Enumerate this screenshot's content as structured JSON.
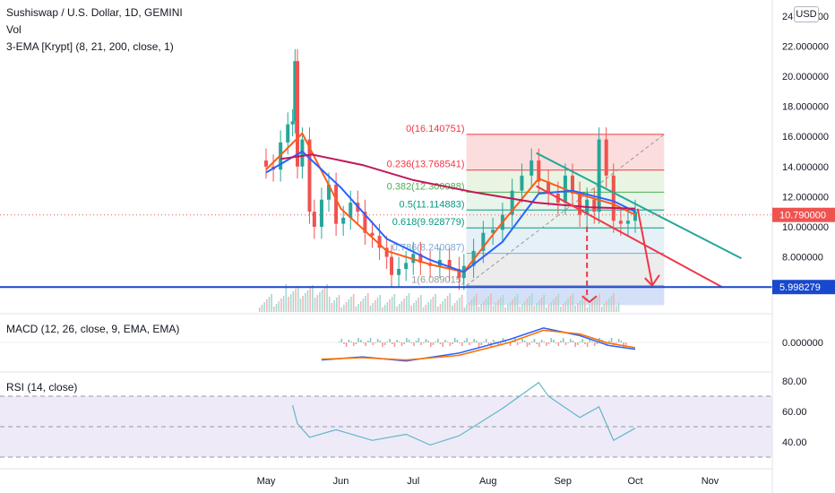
{
  "header": {
    "symbol_title": "Sushiswap / U.S. Dollar, 1D, GEMINI",
    "vol_label": "Vol",
    "ema_label": "3-EMA [Krypt] (8, 21, 200, close, 1)",
    "macd_label": "MACD (12, 26, close, 9, EMA, EMA)",
    "rsi_label": "RSI (14, close)",
    "currency_button": "USD"
  },
  "colors": {
    "up": "#26a69a",
    "down": "#ef5350",
    "ema_fast": "#ff5b1a",
    "ema_mid": "#2962ff",
    "ema_slow": "#c2185b",
    "support": "#1848cc",
    "channel_top": "#26a69a",
    "channel_bottom": "#f23645",
    "rsi": "#5fb8c9",
    "rsi_band": "#efeaf8",
    "macd": "#2962ff",
    "signal": "#ff6d00"
  },
  "chart_data": [
    {
      "type": "line",
      "title": "Sushiswap / U.S. Dollar, 1D, GEMINI",
      "xlabel": "",
      "ylabel": "",
      "x_ticks": [
        "May",
        "Jun",
        "Jul",
        "Aug",
        "Sep",
        "Oct",
        "Nov"
      ],
      "y_ticks": [
        "24.000000",
        "22.000000",
        "20.000000",
        "18.000000",
        "16.000000",
        "14.000000",
        "12.000000",
        "10.000000",
        "8.000000"
      ],
      "ylim": [
        5.4,
        24.5
      ],
      "price_labels": {
        "current": "10.790000",
        "support": "5.998279"
      },
      "current_price": 10.79,
      "support_level": 5.998279,
      "fib_levels": [
        {
          "label": "0(16.140751)",
          "value": 16.140751
        },
        {
          "label": "0.236(13.768541)",
          "value": 13.768541
        },
        {
          "label": "0.382(12.300988)",
          "value": 12.300988
        },
        {
          "label": "0.5(11.114883)",
          "value": 11.114883
        },
        {
          "label": "0.618(9.928779)",
          "value": 9.928779
        },
        {
          "label": "0.786(8.240087)",
          "value": 8.240087
        },
        {
          "label": "1(6.089015)",
          "value": 6.089015
        }
      ],
      "series": [
        {
          "name": "close",
          "x": [
            "2021-04-28",
            "2021-05-01",
            "2021-05-04",
            "2021-05-07",
            "2021-05-10",
            "2021-05-12",
            "2021-05-13",
            "2021-05-14",
            "2021-05-16",
            "2021-05-19",
            "2021-05-21",
            "2021-05-24",
            "2021-05-27",
            "2021-05-30",
            "2021-06-02",
            "2021-06-05",
            "2021-06-08",
            "2021-06-11",
            "2021-06-14",
            "2021-06-17",
            "2021-06-20",
            "2021-06-22",
            "2021-06-25",
            "2021-06-28",
            "2021-07-01",
            "2021-07-04",
            "2021-07-08",
            "2021-07-12",
            "2021-07-16",
            "2021-07-20",
            "2021-07-22",
            "2021-07-26",
            "2021-07-30",
            "2021-08-03",
            "2021-08-07",
            "2021-08-11",
            "2021-08-15",
            "2021-08-19",
            "2021-08-22",
            "2021-08-26",
            "2021-08-30",
            "2021-09-02",
            "2021-09-05",
            "2021-09-08",
            "2021-09-11",
            "2021-09-14",
            "2021-09-16",
            "2021-09-19",
            "2021-09-22",
            "2021-09-25",
            "2021-09-28",
            "2021-10-01"
          ],
          "values": [
            14.4,
            14.0,
            13.8,
            15.6,
            16.8,
            17.0,
            21.0,
            14.0,
            15.8,
            11.0,
            10.0,
            11.8,
            12.8,
            10.2,
            10.6,
            11.6,
            11.0,
            9.6,
            9.4,
            8.6,
            8.0,
            6.8,
            7.2,
            7.6,
            8.2,
            7.6,
            7.4,
            7.8,
            7.2,
            6.6,
            7.4,
            8.4,
            9.6,
            9.8,
            10.8,
            12.4,
            13.4,
            14.4,
            13.0,
            12.2,
            11.6,
            13.4,
            12.2,
            10.8,
            11.8,
            11.0,
            15.8,
            13.4,
            10.4,
            10.2,
            10.4,
            11.0
          ]
        },
        {
          "name": "EMA 8",
          "x": [
            "2021-05-01",
            "2021-05-16",
            "2021-06-01",
            "2021-06-20",
            "2021-07-08",
            "2021-07-22",
            "2021-08-07",
            "2021-08-22",
            "2021-09-05",
            "2021-09-22",
            "2021-10-01"
          ],
          "values": [
            13.8,
            16.2,
            11.2,
            8.4,
            7.5,
            7.0,
            10.3,
            13.2,
            12.3,
            11.5,
            10.8
          ]
        },
        {
          "name": "EMA 21",
          "x": [
            "2021-05-01",
            "2021-05-16",
            "2021-06-01",
            "2021-06-20",
            "2021-07-08",
            "2021-07-22",
            "2021-08-07",
            "2021-08-22",
            "2021-09-05",
            "2021-09-22",
            "2021-10-01"
          ],
          "values": [
            13.6,
            15.0,
            12.6,
            9.2,
            7.8,
            7.0,
            9.0,
            12.2,
            12.4,
            11.7,
            11.0
          ]
        },
        {
          "name": "EMA 200",
          "x": [
            "2021-05-07",
            "2021-05-20",
            "2021-06-10",
            "2021-07-01",
            "2021-07-26",
            "2021-08-21",
            "2021-09-12",
            "2021-10-01"
          ],
          "values": [
            14.5,
            14.8,
            14.1,
            13.1,
            12.3,
            11.6,
            11.3,
            11.2
          ]
        }
      ],
      "annotations": [
        "Fibonacci retracement",
        "descending channel",
        "support line 5.998279",
        "projected breakdown arrows"
      ]
    },
    {
      "type": "line",
      "title": "MACD (12, 26, close, 9, EMA, EMA)",
      "y_ticks": [
        "0.000000"
      ],
      "series": [
        {
          "name": "MACD",
          "x": [
            "2021-05-24",
            "2021-06-10",
            "2021-06-28",
            "2021-07-20",
            "2021-08-10",
            "2021-08-24",
            "2021-09-08",
            "2021-09-20",
            "2021-10-01"
          ],
          "values": [
            -1.15,
            -0.95,
            -1.22,
            -0.7,
            0.2,
            0.95,
            0.45,
            -0.2,
            -0.45
          ]
        },
        {
          "name": "Signal",
          "x": [
            "2021-05-24",
            "2021-06-10",
            "2021-06-28",
            "2021-07-20",
            "2021-08-10",
            "2021-08-24",
            "2021-09-08",
            "2021-09-20",
            "2021-10-01"
          ],
          "values": [
            -1.1,
            -1.0,
            -1.15,
            -0.85,
            0.0,
            0.8,
            0.55,
            -0.05,
            -0.35
          ]
        }
      ]
    },
    {
      "type": "line",
      "title": "RSI (14, close)",
      "y_ticks": [
        "80.00",
        "60.00",
        "40.00"
      ],
      "ylim": [
        25,
        85
      ],
      "bands": [
        30,
        50,
        70
      ],
      "series": [
        {
          "name": "RSI",
          "x": [
            "2021-05-12",
            "2021-05-14",
            "2021-05-19",
            "2021-05-30",
            "2021-06-14",
            "2021-06-28",
            "2021-07-08",
            "2021-07-20",
            "2021-08-07",
            "2021-08-22",
            "2021-08-26",
            "2021-09-08",
            "2021-09-16",
            "2021-09-22",
            "2021-10-01"
          ],
          "values": [
            64,
            52,
            43,
            48,
            41,
            45,
            38,
            44,
            62,
            79,
            70,
            56,
            63,
            41,
            49
          ]
        }
      ]
    }
  ]
}
